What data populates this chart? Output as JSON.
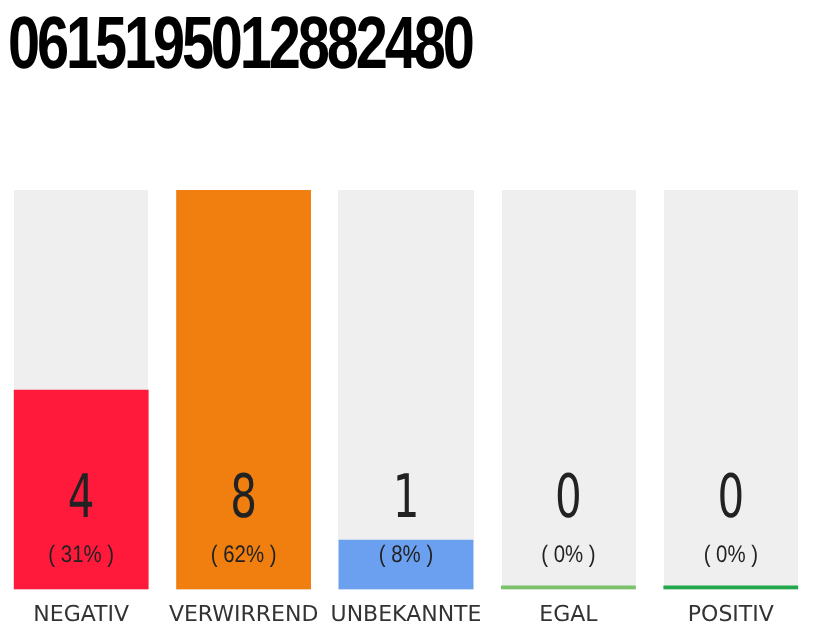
{
  "chart_data": {
    "type": "bar",
    "title": "0615195012882480",
    "categories": [
      "NEGATIV",
      "VERWIRREND",
      "UNBEKANNTE",
      "EGAL",
      "POSITIV"
    ],
    "values": [
      4,
      8,
      1,
      0,
      0
    ],
    "colors": [
      "#ff1a3c",
      "#f07f0f",
      "#6aa0ef",
      "#7cc26a",
      "#22a84a"
    ],
    "value_labels": [
      "4 ( 31% )",
      "8 ( 62% )",
      "1 ( 8% )",
      "0 ( 0% )",
      "0 ( 0% )"
    ],
    "grid": false,
    "legend": false,
    "tick_labels": "x"
  }
}
